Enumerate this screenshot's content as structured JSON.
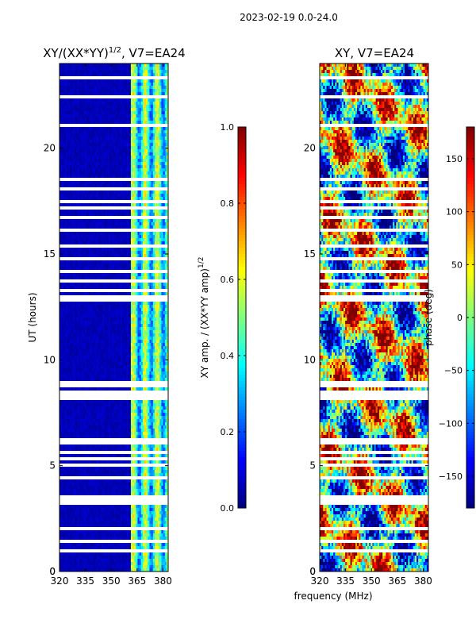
{
  "suptitle": "2023-02-19 0.0-24.0",
  "colors": {
    "jet": [
      "#00007f",
      "#0000ff",
      "#007fff",
      "#00ffff",
      "#7fff7f",
      "#ffff00",
      "#ff7f00",
      "#ff0000",
      "#7f0000"
    ],
    "gap": "#ffffff"
  },
  "gap_hours": [
    0.3,
    0.6,
    1.0,
    1.45,
    2.05,
    3.0,
    3.25,
    3.4,
    3.55,
    4.4,
    5.05,
    5.3,
    5.6,
    6.1,
    6.25,
    8.15,
    8.3,
    8.5,
    8.75,
    8.95,
    10.65,
    10.95,
    12.8,
    13.0,
    13.25,
    13.5,
    13.7,
    13.95,
    14.15,
    14.4,
    14.8,
    15.0,
    15.4,
    15.6,
    15.75,
    16.15,
    16.5,
    16.7,
    17.2,
    17.45,
    17.7,
    17.85,
    18.05,
    18.5,
    18.6,
    18.9,
    19.2,
    19.5,
    21.05,
    21.6,
    22.2,
    22.45,
    22.95,
    23.3
  ],
  "chart_data": [
    {
      "type": "heatmap",
      "title": "XY/(XX*YY)",
      "title_superscript": "1/2",
      "title_suffix": ", V7=EA24",
      "xlabel": "",
      "ylabel": "UT (hours)",
      "xlim": [
        320,
        383
      ],
      "ylim": [
        0,
        24
      ],
      "xticks": [
        320,
        335,
        350,
        365,
        380
      ],
      "yticks": [
        0,
        5,
        10,
        15,
        20
      ],
      "colorbar": {
        "label": "XY amp. / (XX*YY amp)",
        "label_superscript": "1/2",
        "range": [
          0.0,
          1.0
        ],
        "ticks": [
          "0.0",
          "0.2",
          "0.4",
          "0.6",
          "0.8",
          "1.0"
        ],
        "tick_values": [
          0.0,
          0.2,
          0.4,
          0.6,
          0.8,
          1.0
        ]
      },
      "description": "amplitude low (~0.05) below 361 MHz; elevated (0.2-0.6) in channels 362-382 MHz"
    },
    {
      "type": "heatmap",
      "title": "XY, V7=EA24",
      "xlabel": "frequency (MHz)",
      "ylabel": "",
      "xlim": [
        320,
        383
      ],
      "ylim": [
        0,
        24
      ],
      "xticks": [
        320,
        335,
        350,
        365,
        380
      ],
      "yticks": [
        0,
        5,
        10,
        15,
        20
      ],
      "colorbar": {
        "label": "phase (deg)",
        "range": [
          -180,
          180
        ],
        "ticks": [
          "150",
          "100",
          "50",
          "0",
          "−50",
          "−100",
          "−150"
        ],
        "tick_values": [
          150,
          100,
          50,
          0,
          -50,
          -100,
          -150
        ]
      },
      "description": "phase varies across full -180..180 range, noisy"
    }
  ]
}
